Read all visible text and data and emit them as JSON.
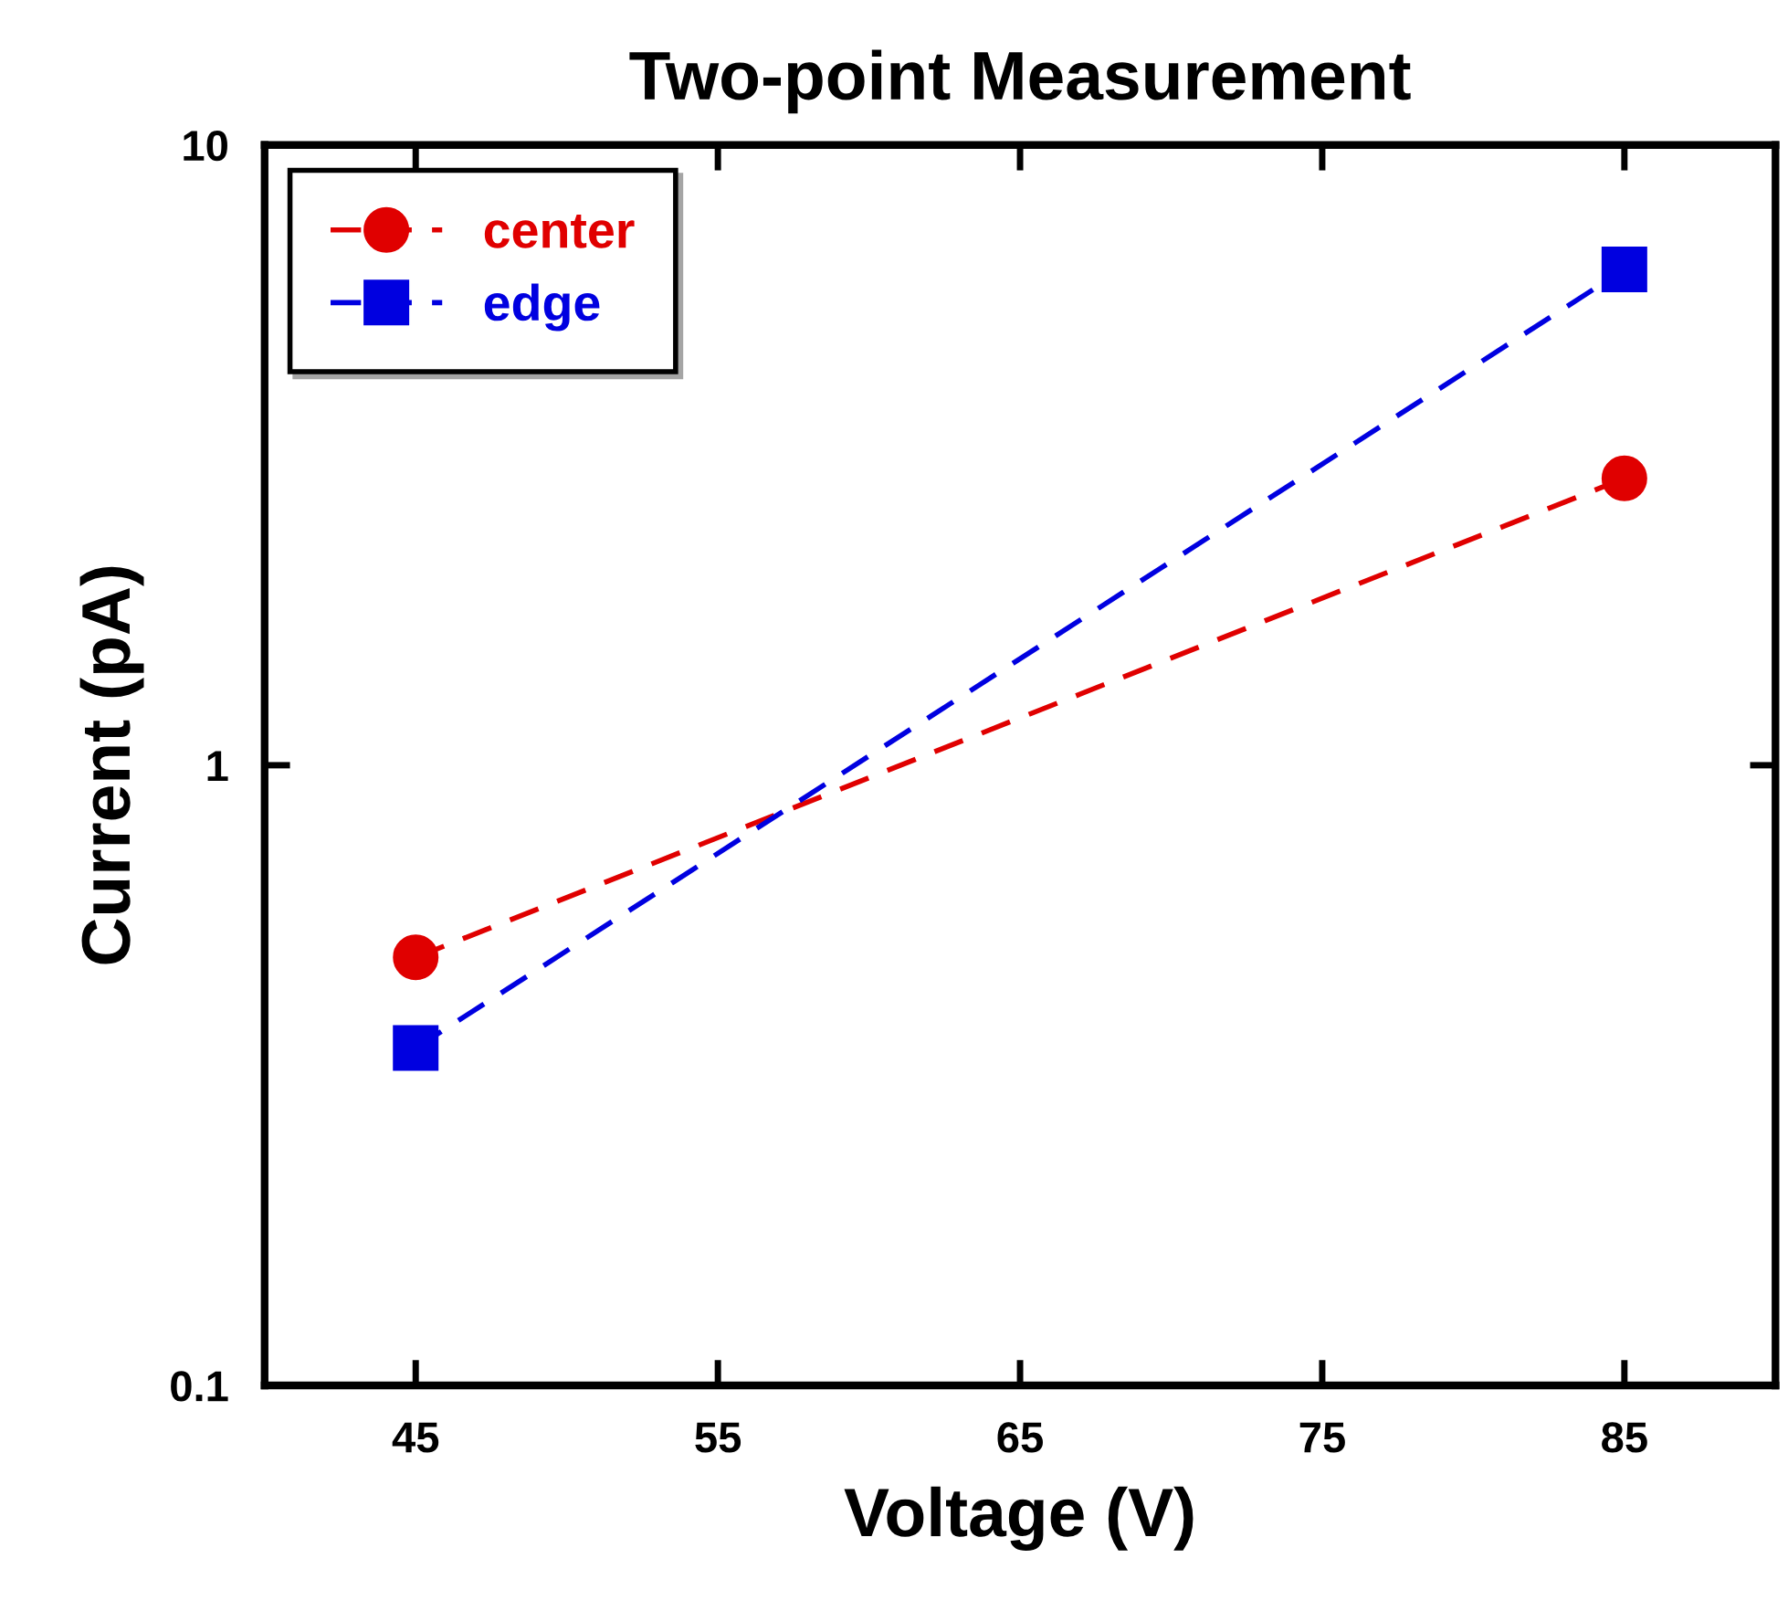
{
  "chart_data": {
    "type": "line",
    "title": "Two-point Measurement",
    "xlabel": "Voltage (V)",
    "ylabel": "Current (pA)",
    "x": [
      45,
      85
    ],
    "series": [
      {
        "name": "center",
        "color": "#e00000",
        "values": [
          0.49,
          2.9
        ],
        "marker": "circle"
      },
      {
        "name": "edge",
        "color": "#0000e0",
        "values": [
          0.35,
          6.3
        ],
        "marker": "square"
      }
    ],
    "xlim": [
      40,
      90
    ],
    "xticks": [
      45,
      55,
      65,
      75,
      85
    ],
    "ylim": [
      0.1,
      10
    ],
    "yticks": [
      0.1,
      1,
      10
    ],
    "log": "y",
    "grid": false,
    "legend": "top left",
    "line_style": "dashed"
  }
}
